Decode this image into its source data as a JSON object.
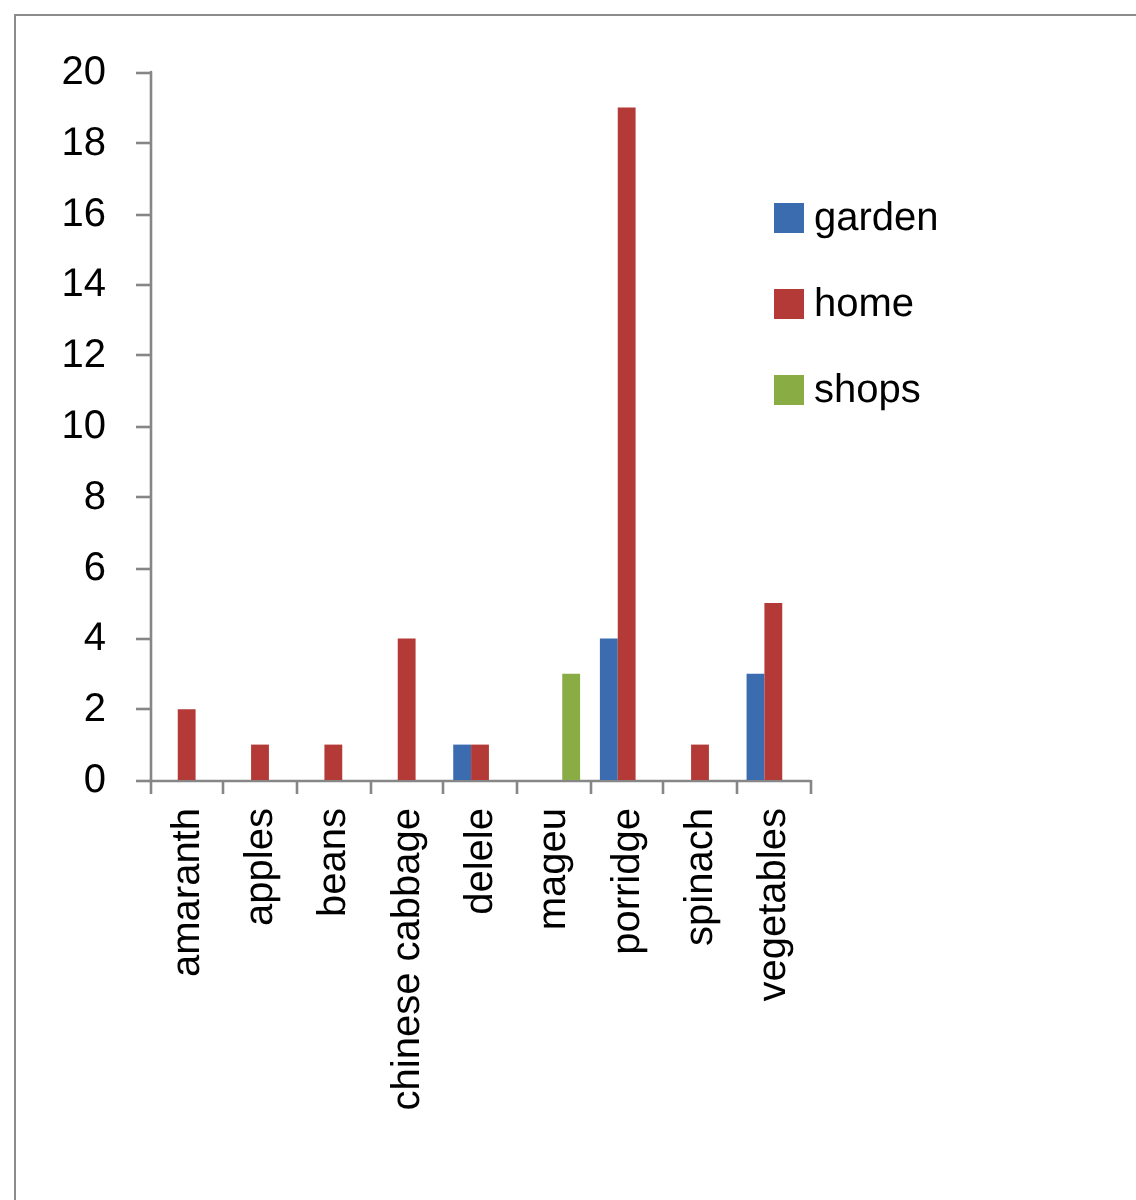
{
  "chart_data": {
    "type": "bar",
    "categories": [
      "amaranth",
      "apples",
      "beans",
      "chinese cabbage",
      "delele",
      "mageu",
      "porridge",
      "spinach",
      "vegetables"
    ],
    "series": [
      {
        "name": "garden",
        "color": "#3b6cb0",
        "values": [
          null,
          null,
          null,
          null,
          1,
          null,
          4,
          null,
          3
        ]
      },
      {
        "name": "home",
        "color": "#b33a36",
        "values": [
          2,
          1,
          1,
          4,
          1,
          null,
          19,
          1,
          5
        ]
      },
      {
        "name": "shops",
        "color": "#8aac45",
        "values": [
          null,
          null,
          null,
          null,
          null,
          3,
          null,
          null,
          null
        ]
      }
    ],
    "ylim": [
      0,
      20
    ],
    "yticks": [
      0,
      2,
      4,
      6,
      8,
      10,
      12,
      14,
      16,
      18,
      20
    ],
    "grid": false,
    "legend": "right"
  }
}
